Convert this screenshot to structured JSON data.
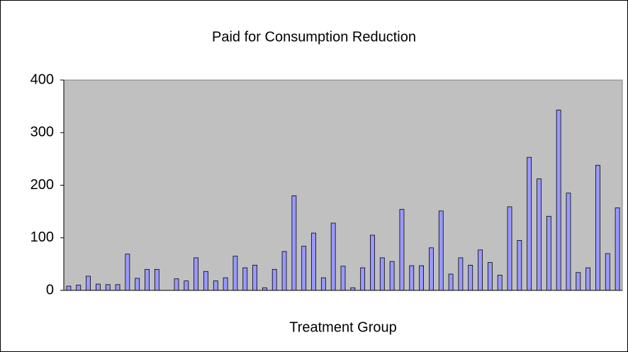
{
  "chart_data": {
    "type": "bar",
    "title": "Paid for Consumption Reduction",
    "x_label": "Treatment Group",
    "categories": [
      null,
      null,
      null,
      null,
      null,
      null,
      null,
      null,
      null,
      null,
      null,
      null,
      null,
      null,
      null,
      null,
      null,
      null,
      null,
      null,
      null,
      null,
      null,
      null,
      null,
      null,
      null,
      null,
      null,
      null,
      null,
      null,
      null,
      null,
      null,
      null,
      null,
      null,
      null,
      null,
      null,
      null,
      null,
      null,
      null,
      null,
      null,
      null,
      null,
      null,
      null,
      null,
      null,
      null,
      null,
      null,
      null
    ],
    "values": [
      8,
      10,
      27,
      12,
      11,
      11,
      69,
      23,
      40,
      40,
      0,
      22,
      18,
      62,
      36,
      18,
      24,
      65,
      43,
      48,
      5,
      40,
      74,
      180,
      84,
      109,
      24,
      128,
      46,
      5,
      43,
      105,
      62,
      55,
      154,
      47,
      47,
      81,
      151,
      31,
      62,
      48,
      77,
      53,
      29,
      159,
      95,
      253,
      212,
      141,
      343,
      185,
      34,
      43,
      238,
      70,
      157
    ],
    "color": "#9999ff",
    "background": "#c0c0c0",
    "ylim": [
      0,
      400
    ],
    "yticks": [
      0,
      100,
      200,
      300,
      400
    ],
    "grid": false
  }
}
